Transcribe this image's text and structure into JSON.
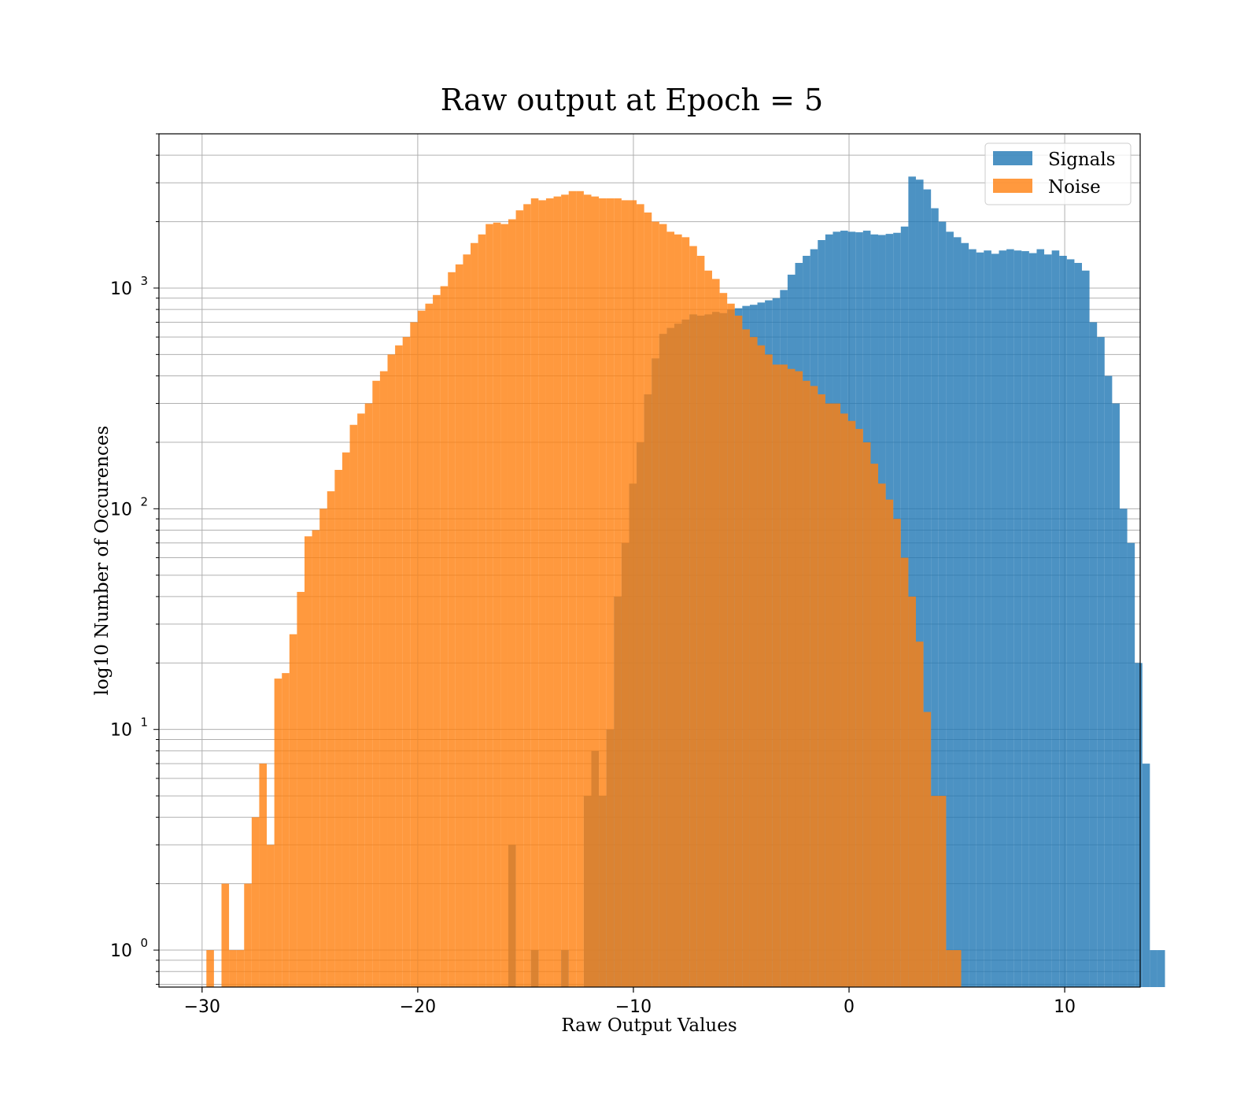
{
  "chart_data": {
    "type": "bar",
    "title": "Raw output at Epoch = 5",
    "xlabel": "Raw Output Values",
    "ylabel": "log10 Number of Occurences",
    "xlim": [
      -32,
      13.5
    ],
    "ylim": [
      0.68,
      5000
    ],
    "y_scale": "log",
    "grid": true,
    "legend_position": "top-right",
    "x_ticks": [
      -30,
      -20,
      -10,
      0,
      10
    ],
    "x_tick_labels": [
      "−30",
      "−20",
      "−10",
      "0",
      "10"
    ],
    "y_ticks": [
      1,
      10,
      100,
      1000
    ],
    "y_tick_bases": [
      "10",
      "10",
      "10",
      "10"
    ],
    "y_tick_exponents": [
      "0",
      "1",
      "2",
      "3"
    ],
    "series": [
      {
        "name": "Signals",
        "color": "#1f77b4",
        "opacity": 0.8,
        "bin_start": -15.8,
        "bin_width": 0.35,
        "values": [
          3,
          0,
          0,
          1,
          0,
          0,
          0,
          1,
          0,
          0,
          5,
          8,
          5,
          10,
          40,
          70,
          130,
          200,
          330,
          480,
          620,
          660,
          690,
          720,
          760,
          750,
          760,
          780,
          770,
          800,
          810,
          830,
          840,
          860,
          880,
          900,
          980,
          1150,
          1300,
          1400,
          1500,
          1650,
          1750,
          1800,
          1820,
          1800,
          1790,
          1820,
          1750,
          1740,
          1760,
          1780,
          1900,
          3200,
          3100,
          2800,
          2300,
          2000,
          1800,
          1700,
          1600,
          1500,
          1450,
          1480,
          1430,
          1480,
          1500,
          1480,
          1470,
          1440,
          1500,
          1420,
          1480,
          1400,
          1350,
          1300,
          1200,
          700,
          600,
          400,
          300,
          100,
          70,
          20,
          7,
          1,
          1
        ]
      },
      {
        "name": "Noise",
        "color": "#ff7f0e",
        "opacity": 0.8,
        "bin_start": -29.8,
        "bin_width": 0.35,
        "values": [
          1,
          0,
          2,
          1,
          1,
          2,
          4,
          7,
          3,
          17,
          18,
          27,
          42,
          75,
          80,
          100,
          120,
          150,
          180,
          240,
          270,
          300,
          380,
          420,
          500,
          550,
          600,
          700,
          790,
          850,
          930,
          1020,
          1180,
          1280,
          1420,
          1600,
          1750,
          1950,
          1980,
          1950,
          2050,
          2250,
          2400,
          2550,
          2500,
          2550,
          2600,
          2650,
          2750,
          2750,
          2650,
          2600,
          2550,
          2550,
          2550,
          2500,
          2500,
          2400,
          2200,
          2000,
          1950,
          1800,
          1750,
          1700,
          1550,
          1400,
          1200,
          1100,
          950,
          850,
          750,
          650,
          600,
          550,
          500,
          450,
          450,
          430,
          420,
          380,
          360,
          330,
          300,
          300,
          270,
          250,
          230,
          200,
          160,
          130,
          110,
          90,
          60,
          40,
          25,
          12,
          5,
          5,
          1,
          1
        ]
      }
    ]
  }
}
